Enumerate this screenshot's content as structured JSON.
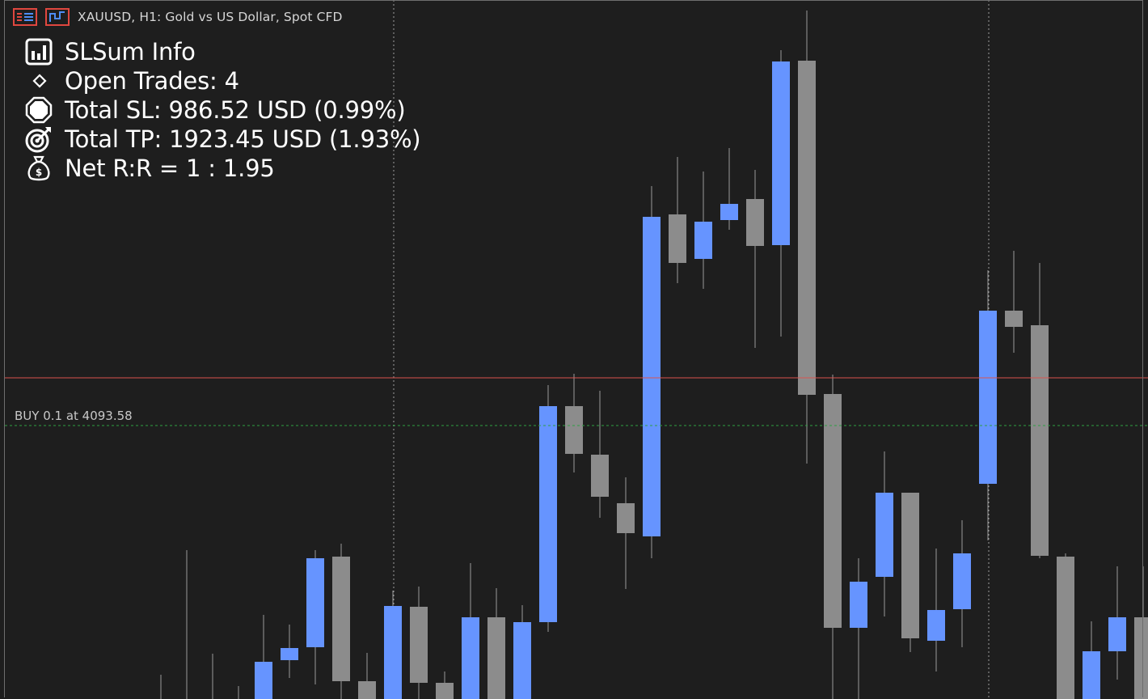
{
  "chart": {
    "title": "XAUUSD, H1:  Gold vs US Dollar, Spot CFD",
    "up_color": "#6694ff",
    "down_color": "#8c8c8c",
    "sl_line_color": "#d9534f",
    "entry_line_color": "#2ea043",
    "grid_color": "#bdbdbd"
  },
  "info": {
    "title": "SLSum Info",
    "open_trades": "Open Trades: 4",
    "total_sl": "Total SL: 986.52 USD (0.99%)",
    "total_tp": "Total TP: 1923.45 USD (1.93%)",
    "net_rr": "Net R:R = 1 : 1.95",
    "icons": {
      "title": "bar-chart-icon",
      "trades": "diamond-icon",
      "sl": "stop-icon",
      "tp": "target-icon",
      "rr": "money-bag-icon"
    }
  },
  "trade": {
    "label": "BUY 0.1 at 4093.58"
  }
}
